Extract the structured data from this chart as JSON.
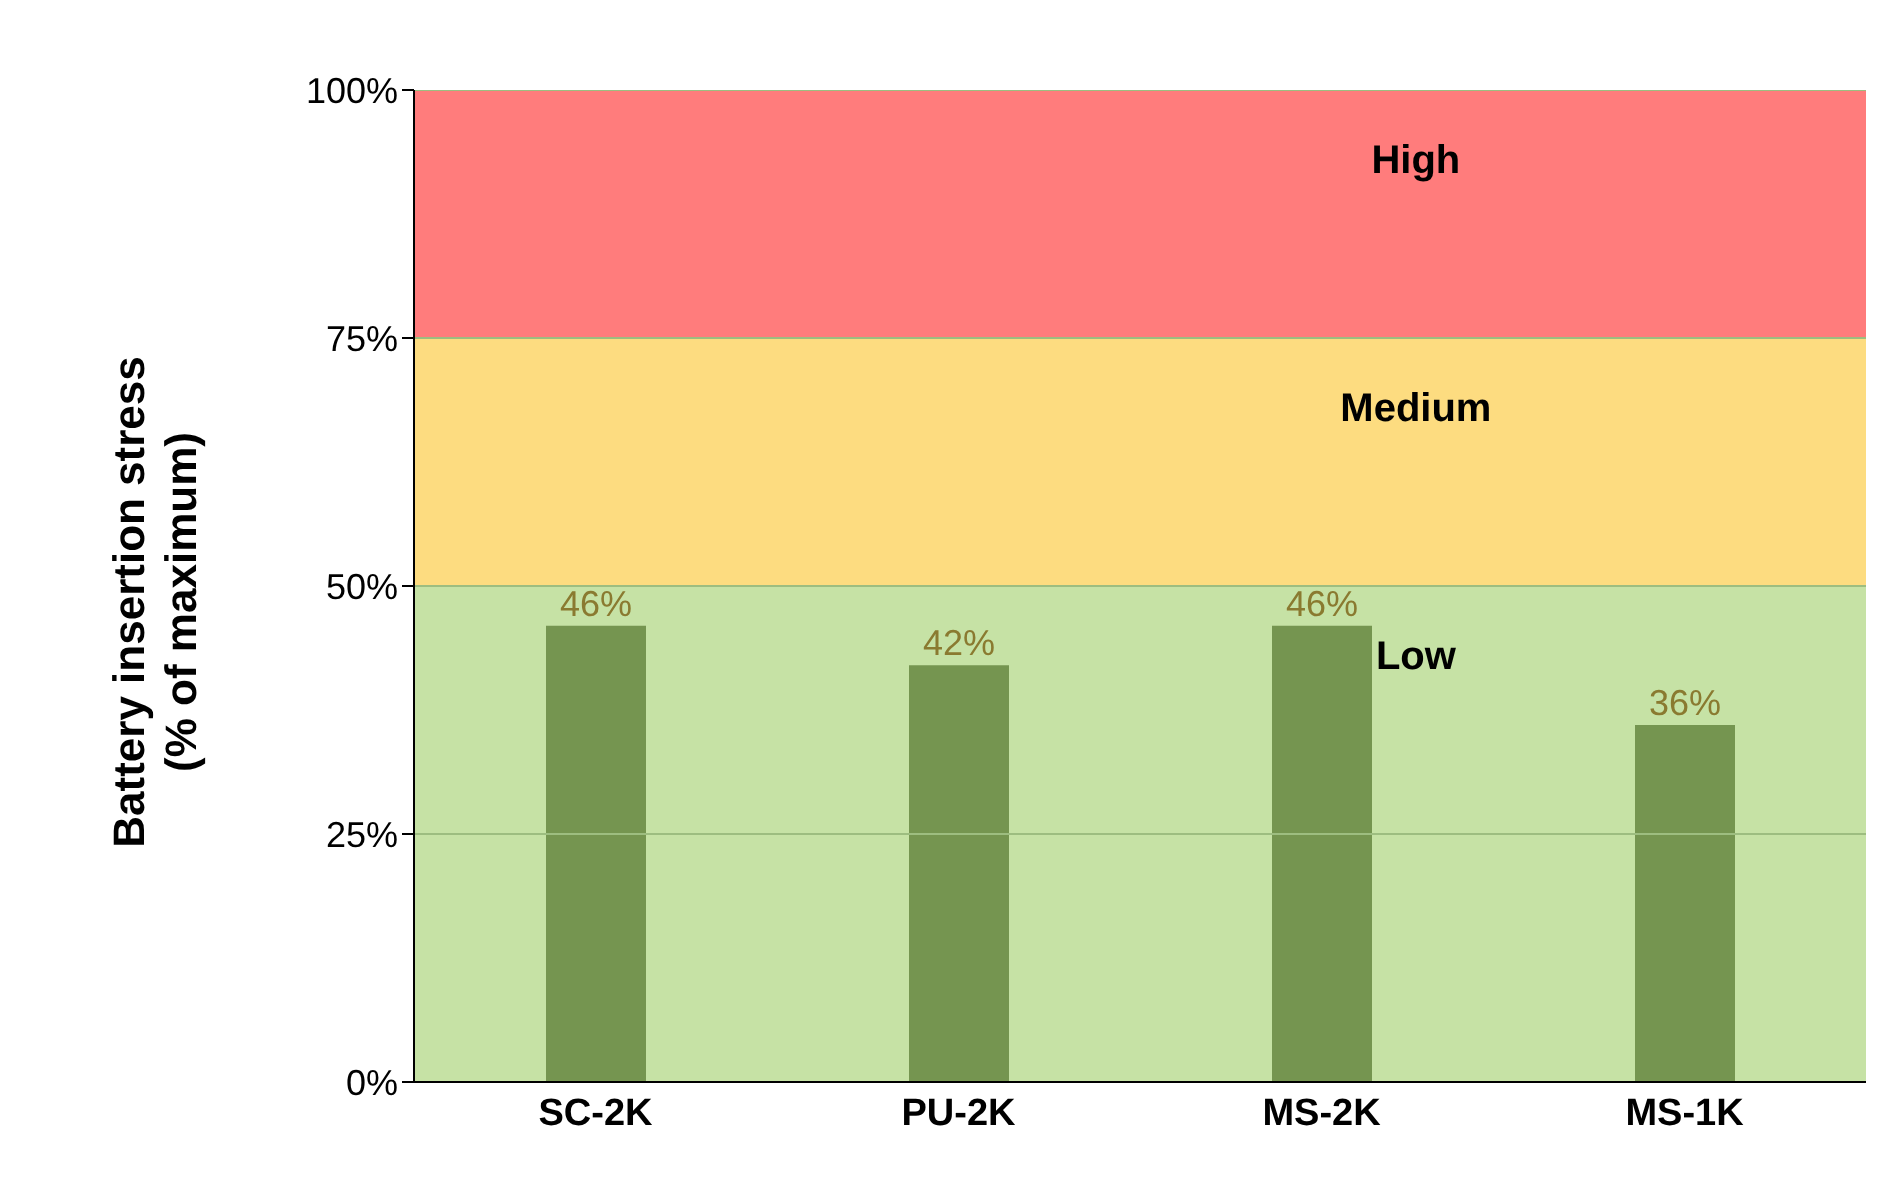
{
  "chart_data": {
    "type": "bar",
    "ylabel": "Battery insertion stress\n(% of maximum)",
    "categories": [
      "SC-2K",
      "PU-2K",
      "MS-2K",
      "MS-1K"
    ],
    "values": [
      46,
      42,
      46,
      36
    ],
    "color": "#759550",
    "value_labels": [
      "46%",
      "42%",
      "46%",
      "36%"
    ],
    "ylim": [
      0,
      100
    ],
    "yticks": [
      {
        "value": 0,
        "label": "0%"
      },
      {
        "value": 25,
        "label": "25%"
      },
      {
        "value": 50,
        "label": "50%"
      },
      {
        "value": 75,
        "label": "75%"
      },
      {
        "value": 100,
        "label": "100%"
      }
    ],
    "grid": "y",
    "legend": false,
    "bands": [
      {
        "axis": "y",
        "from": 0,
        "to": 50,
        "label": "Low",
        "color": "#c6e2a5"
      },
      {
        "axis": "y",
        "from": 50,
        "to": 75,
        "label": "Medium",
        "color": "#fddc80"
      },
      {
        "axis": "y",
        "from": 75,
        "to": 100,
        "label": "High",
        "color": "#ff7c7c"
      }
    ]
  }
}
